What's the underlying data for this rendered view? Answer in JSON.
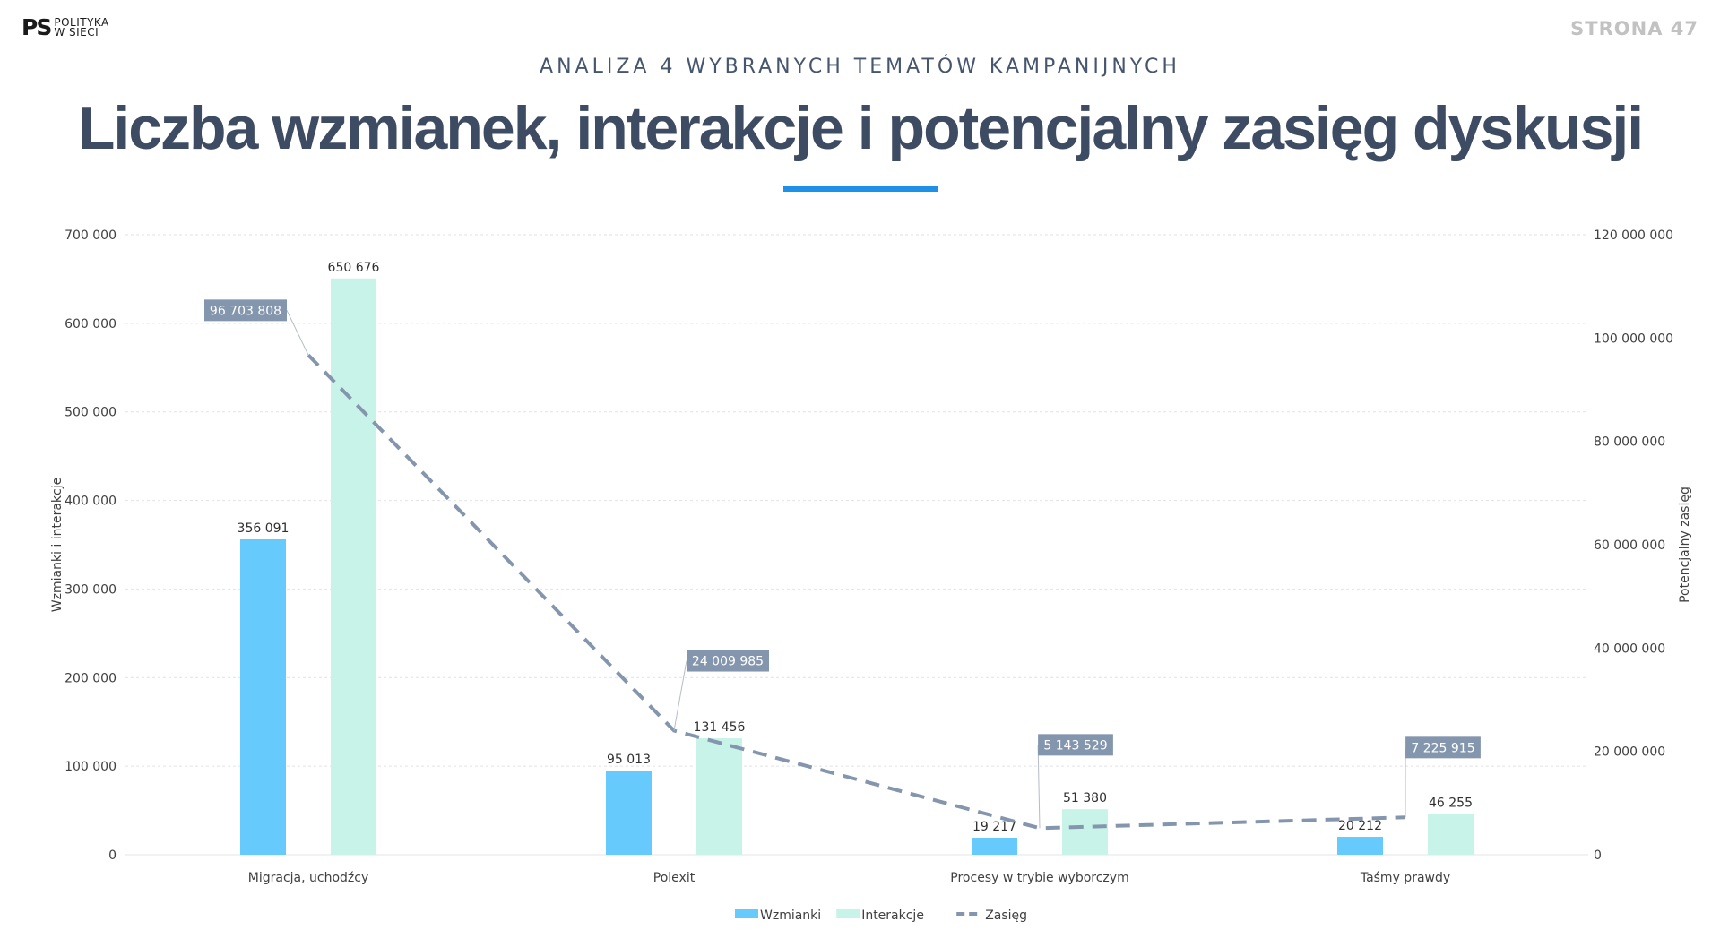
{
  "header": {
    "logo_mark": "PS",
    "logo_line1": "POLITYKA",
    "logo_line2": "W SIECI",
    "page_label": "STRONA",
    "page_number": "47",
    "kicker": "ANALIZA 4 WYBRANYCH TEMATÓW KAMPANIJNYCH",
    "title": "Liczba wzmianek, interakcje i potencjalny zasięg dyskusji"
  },
  "colors": {
    "wzmianki": "#66cbfc",
    "interakcje": "#c8f3e8",
    "zasieg": "#8496ad",
    "label_box": "#8496ad",
    "axis_text": "#404040",
    "accent": "#1e90e6"
  },
  "chart_data": {
    "type": "bar",
    "categories": [
      "Migracja, uchodźcy",
      "Polexit",
      "Procesy w trybie wyborczym",
      "Taśmy prawdy"
    ],
    "series": [
      {
        "name": "Wzmianki",
        "type": "bar",
        "axis": "left",
        "values": [
          356091,
          95013,
          19217,
          20212
        ],
        "labels": [
          "356 091",
          "95 013",
          "19 217",
          "20 212"
        ]
      },
      {
        "name": "Interakcje",
        "type": "bar",
        "axis": "left",
        "values": [
          650676,
          131456,
          51380,
          46255
        ],
        "labels": [
          "650 676",
          "131 456",
          "51 380",
          "46 255"
        ]
      },
      {
        "name": "Zasięg",
        "type": "line",
        "style": "dashed",
        "axis": "right",
        "values": [
          96703808,
          24009985,
          5143529,
          7225915
        ],
        "labels": [
          "96 703 808",
          "24 009 985",
          "5 143 529",
          "7 225 915"
        ]
      }
    ],
    "ylabel": "Wzmianki i interakcje",
    "y2label": "Potencjalny zasięg",
    "ylim": [
      0,
      700000
    ],
    "y2lim": [
      0,
      120000000
    ],
    "yticks": [
      0,
      100000,
      200000,
      300000,
      400000,
      500000,
      600000,
      700000
    ],
    "ytick_labels": [
      "0",
      "100 000",
      "200 000",
      "300 000",
      "400 000",
      "500 000",
      "600 000",
      "700 000"
    ],
    "y2ticks": [
      0,
      20000000,
      40000000,
      60000000,
      80000000,
      100000000,
      120000000
    ],
    "y2tick_labels": [
      "0",
      "20 000 000",
      "40 000 000",
      "60 000 000",
      "80 000 000",
      "100 000 000",
      "120 000 000"
    ],
    "grid": true,
    "legend_position": "bottom"
  }
}
